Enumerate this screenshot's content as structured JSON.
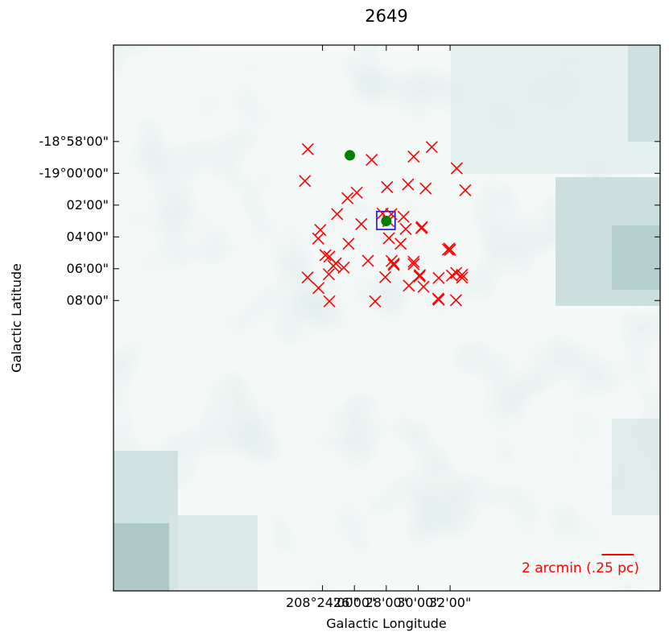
{
  "chart_data": {
    "type": "scatter",
    "title": "2649",
    "xlabel": "Galactic Longitude",
    "ylabel": "Galactic Latitude",
    "x_unit": "arcsec offset from 208°28'00\" (axis increases to the left)",
    "y_unit": "arcsec offset from -19°00'00\"",
    "xlim": [
      -1026,
      1030
    ],
    "ylim": [
      -484,
      1576
    ],
    "x_ticks": [
      {
        "value": 240,
        "label": "32'00\""
      },
      {
        "value": 120,
        "label": "30'00\""
      },
      {
        "value": 0,
        "label": "28'00\""
      },
      {
        "value": -120,
        "label": "26'00\""
      },
      {
        "value": -240,
        "label": "208°24'00\""
      }
    ],
    "y_ticks": [
      {
        "value": -120,
        "label": "-18°58'00\""
      },
      {
        "value": 0,
        "label": "-19°00'00\""
      },
      {
        "value": 120,
        "label": "02'00\""
      },
      {
        "value": 240,
        "label": "04'00\""
      },
      {
        "value": 360,
        "label": "06'00\""
      },
      {
        "value": 480,
        "label": "08'00\""
      }
    ],
    "grid": false,
    "series": [
      {
        "marker": "x",
        "color": "#ff0000",
        "points": [
          [
            171,
            -99
          ],
          [
            103,
            -63
          ],
          [
            -55,
            -51
          ],
          [
            265,
            -19
          ],
          [
            -295,
            -91
          ],
          [
            -306,
            29
          ],
          [
            148,
            57
          ],
          [
            82,
            42
          ],
          [
            3,
            52
          ],
          [
            -111,
            73
          ],
          [
            297,
            64
          ],
          [
            -146,
            94
          ],
          [
            -185,
            154
          ],
          [
            65,
            164
          ],
          [
            19,
            154
          ],
          [
            -14,
            152
          ],
          [
            -94,
            192
          ],
          [
            134,
            203
          ],
          [
            132,
            207
          ],
          [
            73,
            210
          ],
          [
            8,
            180
          ],
          [
            10,
            245
          ],
          [
            -248,
            214
          ],
          [
            54,
            266
          ],
          [
            237,
            284
          ],
          [
            -142,
            266
          ],
          [
            -256,
            246
          ],
          [
            -69,
            330
          ],
          [
            232,
            288
          ],
          [
            240,
            289
          ],
          [
            103,
            334
          ],
          [
            103,
            343
          ],
          [
            20,
            331
          ],
          [
            28,
            341
          ],
          [
            28,
            346
          ],
          [
            -190,
            340
          ],
          [
            -199,
            350
          ],
          [
            -214,
            314
          ],
          [
            -229,
            309
          ],
          [
            -160,
            356
          ],
          [
            263,
            376
          ],
          [
            247,
            386
          ],
          [
            125,
            389
          ],
          [
            126,
            384
          ],
          [
            -216,
            381
          ],
          [
            -296,
            393
          ],
          [
            285,
            394
          ],
          [
            285,
            383
          ],
          [
            197,
            395
          ],
          [
            -4,
            392
          ],
          [
            140,
            428
          ],
          [
            85,
            424
          ],
          [
            -255,
            433
          ],
          [
            195,
            473
          ],
          [
            262,
            479
          ],
          [
            197,
            477
          ],
          [
            -42,
            483
          ],
          [
            -214,
            483
          ]
        ]
      },
      {
        "marker": "o",
        "color": "#008000",
        "points": [
          [
            -137,
            -68
          ],
          [
            0,
            180
          ]
        ]
      }
    ],
    "box": {
      "x_min": -36,
      "x_max": 33,
      "y_min": 144,
      "y_max": 212,
      "color": "#0000ff"
    },
    "scalebar": {
      "label": "2 arcmin (.25 pc)",
      "length_arcsec": 120,
      "color": "#ff0000"
    },
    "background": "grayscale dust map, light teal-gray"
  }
}
